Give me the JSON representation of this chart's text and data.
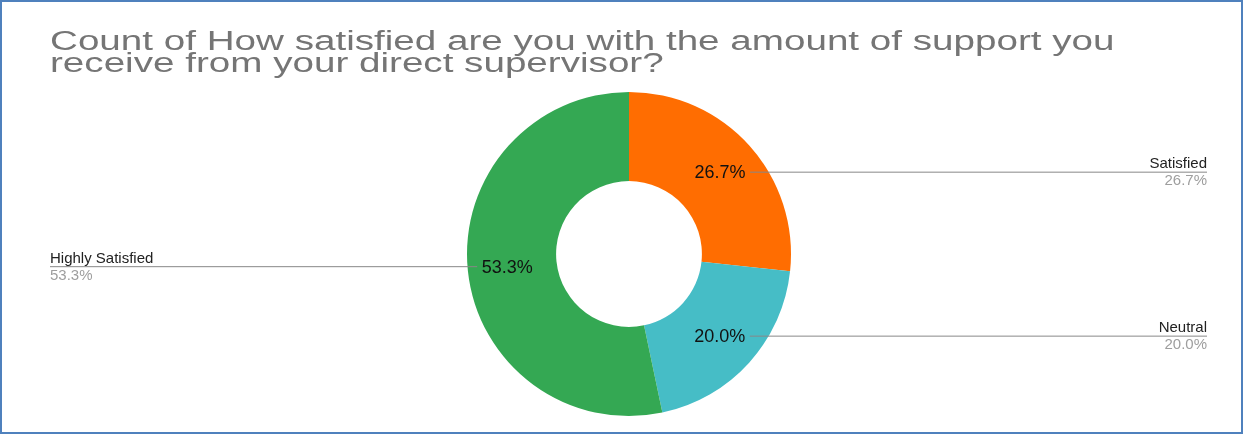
{
  "chart_data": {
    "type": "donut",
    "title": "Count of How satisfied are you with the amount of support you receive from your direct supervisor?",
    "categories": [
      "Satisfied",
      "Neutral",
      "Highly Satisfied"
    ],
    "values": [
      26.7,
      20.0,
      53.3
    ],
    "colors": [
      "#ff6d01",
      "#46bdc6",
      "#34a853"
    ],
    "value_labels": [
      "26.7%",
      "20.0%",
      "53.3%"
    ]
  }
}
